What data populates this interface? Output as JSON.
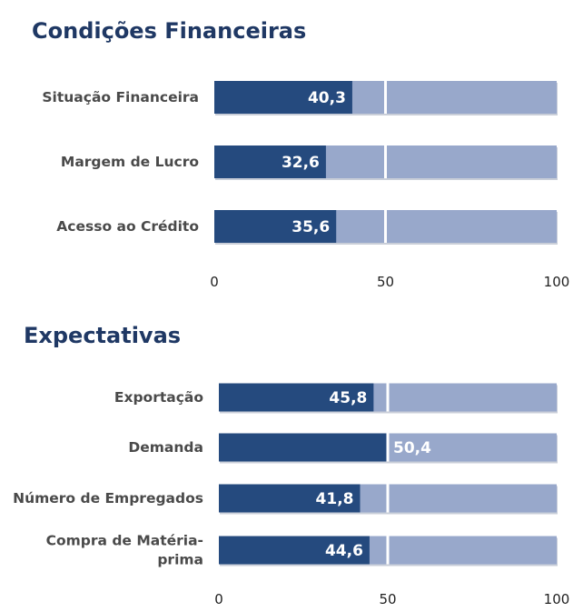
{
  "colors": {
    "title": "#1f3864",
    "bar_value": "#254a7e",
    "bar_track": "#98a8cb",
    "track_shadow": "#c9ced8",
    "midline": "#ffffff",
    "category_text": "#4a4a4a",
    "value_text": "#ffffff"
  },
  "chart_data": [
    {
      "type": "bar",
      "orientation": "horizontal",
      "title": "Condições Financeiras",
      "categories": [
        "Situação Financeira",
        "Margem de Lucro",
        "Acesso ao Crédito"
      ],
      "values": [
        40.3,
        32.6,
        35.6
      ],
      "value_labels": [
        "40,3",
        "32,6",
        "35,6"
      ],
      "xlim": [
        0,
        100
      ],
      "ticks": [
        "0",
        "50",
        "100"
      ],
      "reference_line": 50,
      "xlabel": "",
      "ylabel": "",
      "grid": false,
      "legend": "none"
    },
    {
      "type": "bar",
      "orientation": "horizontal",
      "title": "Expectativas",
      "categories": [
        "Exportação",
        "Demanda",
        "Número de Empregados",
        "Compra de Matéria-prima"
      ],
      "category_lines": [
        [
          "Exportação"
        ],
        [
          "Demanda"
        ],
        [
          "Número de Empregados"
        ],
        [
          "Compra de Matéria-",
          "prima"
        ]
      ],
      "values": [
        45.8,
        50.4,
        41.8,
        44.6
      ],
      "value_labels": [
        "45,8",
        "50,4",
        "41,8",
        "44,6"
      ],
      "xlim": [
        0,
        100
      ],
      "ticks": [
        "0",
        "50",
        "100"
      ],
      "reference_line": 50,
      "xlabel": "",
      "ylabel": "",
      "grid": false,
      "legend": "none"
    }
  ]
}
